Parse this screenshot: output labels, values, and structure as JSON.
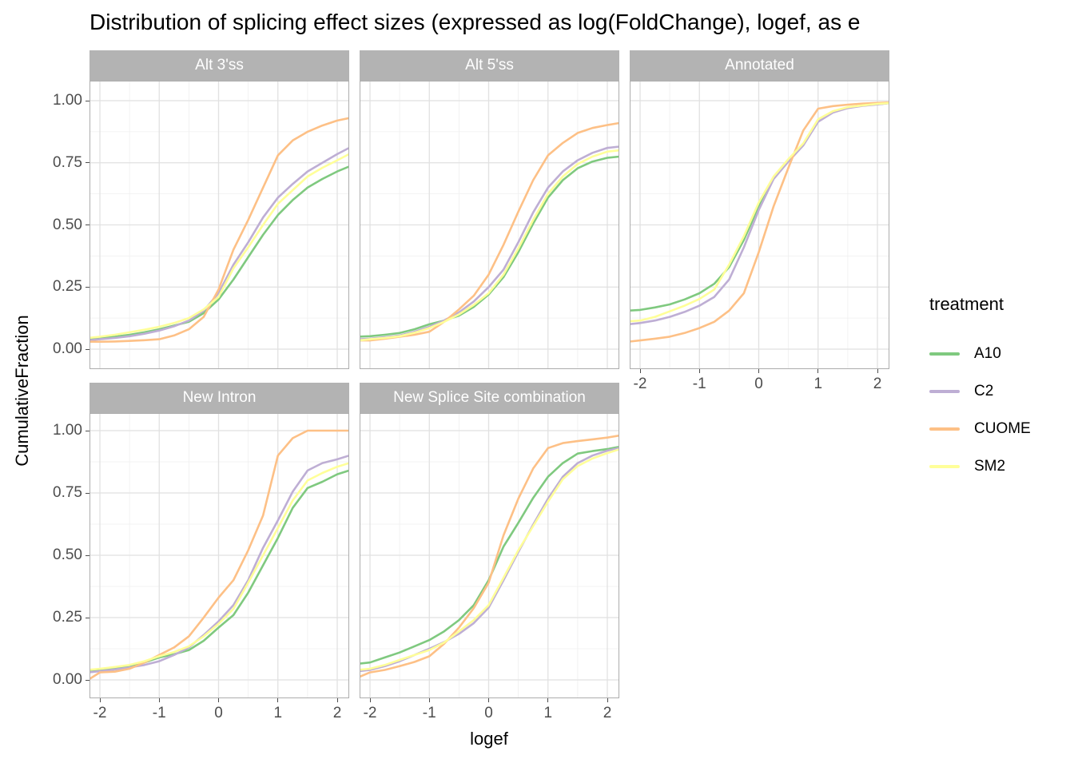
{
  "title": "Distribution of splicing effect sizes (expressed as log(FoldChange), logef, as e",
  "x_axis": {
    "title": "logef",
    "tick_labels": [
      "-2",
      "-1",
      "0",
      "1",
      "2"
    ],
    "tick_values": [
      -2,
      -1,
      0,
      1,
      2
    ],
    "range": [
      -2.2,
      2.2
    ]
  },
  "y_axis": {
    "title": "CumulativeFraction",
    "tick_labels": [
      "1.00",
      "0.75",
      "0.50",
      "0.25",
      "0.00"
    ],
    "tick_values": [
      1,
      0.75,
      0.5,
      0.25,
      0
    ],
    "range": [
      0,
      1
    ]
  },
  "legend": {
    "title": "treatment",
    "items": [
      {
        "label": "A10",
        "color": "#7fc97f"
      },
      {
        "label": "C2",
        "color": "#beaed4"
      },
      {
        "label": "CUOME",
        "color": "#fdc086"
      },
      {
        "label": "SM2",
        "color": "#ffff99"
      }
    ]
  },
  "style": {
    "strip_fill": "#b3b3b3",
    "strip_text": "#ffffff",
    "panel_border": "#adadad",
    "grid_major": "#e1e1e1",
    "grid_minor": "#efefef",
    "axis_text": "#4d4d4d"
  },
  "chart_data": {
    "type": "line",
    "subtype": "faceted-ecdf",
    "title": "Distribution of splicing effect sizes (expressed as log(FoldChange), logef, as e",
    "xlabel": "logef",
    "ylabel": "CumulativeFraction",
    "xlim": [
      -2.2,
      2.2
    ],
    "ylim": [
      0,
      1
    ],
    "grid": true,
    "legend_position": "right",
    "series_names": [
      "A10",
      "C2",
      "CUOME",
      "SM2"
    ],
    "series_colors": {
      "A10": "#7fc97f",
      "C2": "#beaed4",
      "CUOME": "#fdc086",
      "SM2": "#ffff99"
    },
    "x": [
      -2.2,
      -2,
      -1.75,
      -1.5,
      -1.25,
      -1,
      -0.75,
      -0.5,
      -0.25,
      0,
      0.25,
      0.5,
      0.75,
      1,
      1.25,
      1.5,
      1.75,
      2,
      2.2
    ],
    "panels": [
      {
        "title": "Alt 3'ss",
        "slug": "alt-3ss",
        "row": 0,
        "col": 0,
        "series": {
          "A10": [
            0.04,
            0.045,
            0.05,
            0.058,
            0.068,
            0.08,
            0.095,
            0.11,
            0.145,
            0.2,
            0.28,
            0.37,
            0.46,
            0.54,
            0.6,
            0.65,
            0.685,
            0.715,
            0.735
          ],
          "C2": [
            0.035,
            0.04,
            0.045,
            0.052,
            0.062,
            0.075,
            0.092,
            0.115,
            0.155,
            0.225,
            0.34,
            0.43,
            0.53,
            0.61,
            0.665,
            0.715,
            0.75,
            0.785,
            0.81
          ],
          "CUOME": [
            0.03,
            0.03,
            0.031,
            0.033,
            0.036,
            0.04,
            0.055,
            0.08,
            0.13,
            0.24,
            0.4,
            0.52,
            0.65,
            0.78,
            0.84,
            0.875,
            0.9,
            0.92,
            0.93
          ],
          "SM2": [
            0.045,
            0.05,
            0.058,
            0.068,
            0.078,
            0.09,
            0.105,
            0.125,
            0.16,
            0.21,
            0.325,
            0.41,
            0.5,
            0.585,
            0.64,
            0.695,
            0.73,
            0.76,
            0.785
          ]
        }
      },
      {
        "title": "Alt 5'ss",
        "slug": "alt-5ss",
        "row": 0,
        "col": 1,
        "series": {
          "A10": [
            0.05,
            0.052,
            0.058,
            0.065,
            0.08,
            0.1,
            0.115,
            0.135,
            0.17,
            0.22,
            0.29,
            0.39,
            0.505,
            0.61,
            0.68,
            0.728,
            0.755,
            0.77,
            0.775
          ],
          "C2": [
            0.04,
            0.042,
            0.048,
            0.055,
            0.07,
            0.09,
            0.115,
            0.148,
            0.192,
            0.25,
            0.32,
            0.43,
            0.55,
            0.65,
            0.715,
            0.76,
            0.79,
            0.81,
            0.815
          ],
          "CUOME": [
            0.035,
            0.035,
            0.042,
            0.05,
            0.058,
            0.07,
            0.11,
            0.16,
            0.215,
            0.3,
            0.42,
            0.553,
            0.68,
            0.78,
            0.83,
            0.87,
            0.89,
            0.902,
            0.91
          ],
          "SM2": [
            0.035,
            0.04,
            0.045,
            0.052,
            0.066,
            0.085,
            0.11,
            0.14,
            0.178,
            0.225,
            0.3,
            0.405,
            0.52,
            0.625,
            0.695,
            0.745,
            0.775,
            0.795,
            0.8
          ]
        }
      },
      {
        "title": "Annotated",
        "slug": "annotated",
        "row": 0,
        "col": 2,
        "series": {
          "A10": [
            0.155,
            0.158,
            0.168,
            0.18,
            0.2,
            0.225,
            0.263,
            0.33,
            0.44,
            0.575,
            0.69,
            0.76,
            0.825,
            0.92,
            0.955,
            0.972,
            0.98,
            0.986,
            0.99
          ],
          "C2": [
            0.1,
            0.105,
            0.115,
            0.13,
            0.15,
            0.175,
            0.21,
            0.28,
            0.41,
            0.56,
            0.685,
            0.755,
            0.82,
            0.915,
            0.952,
            0.97,
            0.979,
            0.985,
            0.99
          ],
          "CUOME": [
            0.03,
            0.035,
            0.042,
            0.05,
            0.065,
            0.085,
            0.11,
            0.155,
            0.225,
            0.39,
            0.575,
            0.73,
            0.88,
            0.968,
            0.978,
            0.984,
            0.988,
            0.991,
            0.993
          ],
          "SM2": [
            0.112,
            0.115,
            0.13,
            0.152,
            0.175,
            0.202,
            0.24,
            0.34,
            0.455,
            0.59,
            0.695,
            0.765,
            0.828,
            0.925,
            0.958,
            0.974,
            0.981,
            0.987,
            0.99
          ]
        }
      },
      {
        "title": "New Intron",
        "slug": "new-intron",
        "row": 1,
        "col": 0,
        "series": {
          "A10": [
            0.035,
            0.04,
            0.046,
            0.055,
            0.07,
            0.09,
            0.103,
            0.12,
            0.157,
            0.21,
            0.26,
            0.35,
            0.46,
            0.57,
            0.69,
            0.77,
            0.795,
            0.825,
            0.84
          ],
          "C2": [
            0.03,
            0.035,
            0.042,
            0.05,
            0.06,
            0.075,
            0.1,
            0.13,
            0.18,
            0.235,
            0.3,
            0.4,
            0.53,
            0.64,
            0.755,
            0.84,
            0.87,
            0.885,
            0.9
          ],
          "CUOME": [
            0.0,
            0.03,
            0.033,
            0.045,
            0.07,
            0.1,
            0.13,
            0.175,
            0.25,
            0.33,
            0.4,
            0.52,
            0.66,
            0.9,
            0.97,
            1.0,
            1.0,
            1.0,
            1.0
          ],
          "SM2": [
            0.04,
            0.045,
            0.052,
            0.06,
            0.075,
            0.095,
            0.112,
            0.135,
            0.175,
            0.225,
            0.285,
            0.39,
            0.5,
            0.61,
            0.72,
            0.8,
            0.83,
            0.855,
            0.87
          ]
        }
      },
      {
        "title": "New Splice Site combination",
        "slug": "new-splice-site-combination",
        "row": 1,
        "col": 1,
        "series": {
          "A10": [
            0.065,
            0.07,
            0.09,
            0.11,
            0.135,
            0.16,
            0.195,
            0.24,
            0.3,
            0.4,
            0.535,
            0.63,
            0.73,
            0.815,
            0.87,
            0.908,
            0.918,
            0.926,
            0.935
          ],
          "C2": [
            0.035,
            0.04,
            0.055,
            0.075,
            0.1,
            0.125,
            0.152,
            0.185,
            0.228,
            0.29,
            0.4,
            0.513,
            0.623,
            0.727,
            0.815,
            0.87,
            0.9,
            0.92,
            0.93
          ],
          "CUOME": [
            0.01,
            0.03,
            0.04,
            0.055,
            0.072,
            0.095,
            0.145,
            0.21,
            0.288,
            0.39,
            0.58,
            0.727,
            0.848,
            0.93,
            0.95,
            0.958,
            0.965,
            0.972,
            0.98
          ],
          "SM2": [
            0.04,
            0.045,
            0.06,
            0.08,
            0.1,
            0.12,
            0.15,
            0.195,
            0.24,
            0.3,
            0.41,
            0.52,
            0.617,
            0.715,
            0.805,
            0.858,
            0.888,
            0.91,
            0.925
          ]
        }
      }
    ]
  }
}
